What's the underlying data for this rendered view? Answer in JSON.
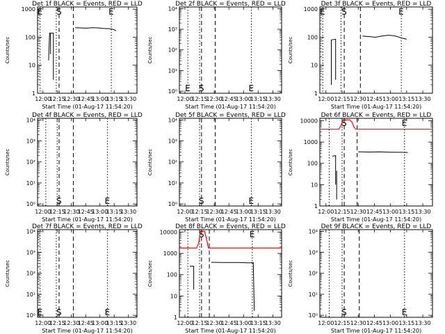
{
  "figure": {
    "xlabel_prefix": "Start Time",
    "xlabel_date": "(01-Aug-17 11:54:20)",
    "ylabel": "Counts/sec"
  },
  "chart_data": [
    {
      "type": "line",
      "title": "Det 1f BLACK = Events, RED = LLD",
      "xlim": [
        "11:54:20",
        "13:39:00"
      ],
      "x_ticks": [
        "12:00",
        "12:15",
        "12:30",
        "12:45",
        "13:00",
        "13:15",
        "13:30"
      ],
      "yscale": "log",
      "ylim": [
        1,
        1200
      ],
      "y_ticks": [
        {
          "v": 1,
          "label": "1"
        },
        {
          "v": 10,
          "label": "10"
        },
        {
          "v": 100,
          "label": "100"
        },
        {
          "v": 1000,
          "label": "1000"
        }
      ],
      "markers": [
        {
          "t": "11:57:00",
          "style": "dotted",
          "label": "E"
        },
        {
          "t": "12:14:00",
          "style": "dotted",
          "label": ""
        },
        {
          "t": "12:17:00",
          "style": "dashed",
          "label": "S"
        },
        {
          "t": "12:32:00",
          "style": "dashed",
          "label": ""
        },
        {
          "t": "13:12:00",
          "style": "dotted",
          "label": "E"
        }
      ],
      "marker_label_pos": "top",
      "series": [
        {
          "name": "Events",
          "color": "#000000",
          "segments": [
            [
              [
                "12:06:00",
                15
              ],
              [
                "12:07:00",
                140
              ],
              [
                "12:11:00",
                140
              ],
              [
                "12:11:00",
                3
              ]
            ],
            [
              [
                "12:08:00",
                140
              ],
              [
                "12:08:00",
                25
              ]
            ],
            [
              [
                "12:34:00",
                220
              ],
              [
                "12:40:00",
                215
              ],
              [
                "12:46:00",
                210
              ],
              [
                "12:52:00",
                220
              ],
              [
                "12:58:00",
                215
              ],
              [
                "13:04:00",
                205
              ],
              [
                "13:10:00",
                200
              ],
              [
                "13:14:00",
                190
              ],
              [
                "13:17:00",
                170
              ]
            ]
          ]
        }
      ]
    },
    {
      "type": "line",
      "title": "Det 2f BLACK = Events, RED = LLD",
      "xlim": [
        "11:54:20",
        "13:39:00"
      ],
      "x_ticks": [
        "12:00",
        "12:15",
        "12:30",
        "12:45",
        "13:00",
        "13:15",
        "13:30"
      ],
      "yscale": "log",
      "ylim": [
        0.8,
        12000
      ],
      "y_ticks": [
        {
          "v": 1,
          "label": "10⁰"
        },
        {
          "v": 10,
          "label": "10¹"
        },
        {
          "v": 100,
          "label": "10²"
        },
        {
          "v": 1000,
          "label": "10³"
        },
        {
          "v": 10000,
          "label": "10⁴"
        }
      ],
      "markers": [
        {
          "t": "12:03:00",
          "style": "dotted",
          "label": "E"
        },
        {
          "t": "12:15:00",
          "style": "dotted",
          "label": ""
        },
        {
          "t": "12:17:00",
          "style": "dashed",
          "label": "S"
        },
        {
          "t": "12:31:00",
          "style": "dashed",
          "label": ""
        },
        {
          "t": "13:08:00",
          "style": "dotted",
          "label": "E"
        }
      ],
      "marker_label_pos": "bottom",
      "series": []
    },
    {
      "type": "line",
      "title": "Det 3f BLACK = Events, RED = LLD",
      "xlim": [
        "11:54:20",
        "13:39:00"
      ],
      "x_ticks": [
        "12:00",
        "12:15",
        "12:30",
        "12:45",
        "13:00",
        "13:15",
        "13:30"
      ],
      "yscale": "log",
      "ylim": [
        1,
        1200
      ],
      "y_ticks": [
        {
          "v": 1,
          "label": "1"
        },
        {
          "v": 10,
          "label": "10"
        },
        {
          "v": 100,
          "label": "100"
        },
        {
          "v": 1000,
          "label": "1000"
        }
      ],
      "markers": [
        {
          "t": "11:57:00",
          "style": "dotted",
          "label": "E"
        },
        {
          "t": "12:14:00",
          "style": "dotted",
          "label": ""
        },
        {
          "t": "12:17:00",
          "style": "dashed",
          "label": "S"
        },
        {
          "t": "12:32:00",
          "style": "dashed",
          "label": ""
        },
        {
          "t": "13:10:00",
          "style": "dotted",
          "label": "E"
        }
      ],
      "marker_label_pos": "top",
      "series": [
        {
          "name": "Events",
          "color": "#000000",
          "segments": [
            [
              [
                "12:05:00",
                2
              ],
              [
                "12:05:00",
                80
              ],
              [
                "12:09:00",
                85
              ],
              [
                "12:09:00",
                3
              ]
            ],
            [
              [
                "12:34:00",
                110
              ],
              [
                "12:40:00",
                105
              ],
              [
                "12:46:00",
                100
              ],
              [
                "12:52:00",
                110
              ],
              [
                "12:58:00",
                118
              ],
              [
                "13:04:00",
                112
              ],
              [
                "13:08:00",
                100
              ],
              [
                "13:12:00",
                90
              ],
              [
                "13:15:00",
                85
              ]
            ]
          ]
        }
      ]
    },
    {
      "type": "line",
      "title": "Det 4f BLACK = Events, RED = LLD",
      "xlim": [
        "11:54:20",
        "13:39:00"
      ],
      "x_ticks": [
        "12:00",
        "12:15",
        "12:30",
        "12:45",
        "13:00",
        "13:15",
        "13:30"
      ],
      "yscale": "log",
      "ylim": [
        0.8,
        12000
      ],
      "y_ticks": [
        {
          "v": 1,
          "label": "10⁰"
        },
        {
          "v": 10,
          "label": "10¹"
        },
        {
          "v": 100,
          "label": "10²"
        },
        {
          "v": 1000,
          "label": "10³"
        },
        {
          "v": 10000,
          "label": "10⁴"
        }
      ],
      "markers": [
        {
          "t": "12:03:00",
          "style": "dotted",
          "label": ""
        },
        {
          "t": "12:15:00",
          "style": "dotted",
          "label": ""
        },
        {
          "t": "12:17:00",
          "style": "dashed",
          "label": "S"
        },
        {
          "t": "12:32:00",
          "style": "dashed",
          "label": ""
        },
        {
          "t": "13:08:00",
          "style": "dotted",
          "label": "E"
        }
      ],
      "marker_label_pos": "bottom",
      "series": []
    },
    {
      "type": "line",
      "title": "Det 5f BLACK = Events, RED = LLD",
      "xlim": [
        "11:54:20",
        "13:39:00"
      ],
      "x_ticks": [
        "12:00",
        "12:15",
        "12:30",
        "12:45",
        "13:00",
        "13:15",
        "13:30"
      ],
      "yscale": "log",
      "ylim": [
        0.8,
        12000
      ],
      "y_ticks": [
        {
          "v": 1,
          "label": "10⁰"
        },
        {
          "v": 10,
          "label": "10¹"
        },
        {
          "v": 100,
          "label": "10²"
        },
        {
          "v": 1000,
          "label": "10³"
        },
        {
          "v": 10000,
          "label": "10⁴"
        }
      ],
      "markers": [
        {
          "t": "12:15:00",
          "style": "dotted",
          "label": ""
        },
        {
          "t": "12:17:00",
          "style": "dashed",
          "label": "S"
        },
        {
          "t": "12:31:00",
          "style": "dashed",
          "label": ""
        },
        {
          "t": "13:08:00",
          "style": "dotted",
          "label": "E"
        }
      ],
      "marker_label_pos": "bottom",
      "series": []
    },
    {
      "type": "line",
      "title": "Det 6f BLACK = Events, RED = LLD",
      "xlim": [
        "11:54:20",
        "13:39:00"
      ],
      "x_ticks": [
        "12:00",
        "12:15",
        "12:30",
        "12:45",
        "13:00",
        "13:15",
        "13:30"
      ],
      "yscale": "log",
      "ylim": [
        1,
        13000
      ],
      "y_ticks": [
        {
          "v": 1,
          "label": "1"
        },
        {
          "v": 10,
          "label": "10"
        },
        {
          "v": 100,
          "label": "100"
        },
        {
          "v": 1000,
          "label": "1000"
        },
        {
          "v": 10000,
          "label": "10000"
        }
      ],
      "markers": [
        {
          "t": "12:03:00",
          "style": "dotted",
          "label": ""
        },
        {
          "t": "12:15:00",
          "style": "dotted",
          "label": ""
        },
        {
          "t": "12:17:00",
          "style": "dashed",
          "label": "S"
        },
        {
          "t": "12:29:00",
          "style": "dashed",
          "label": ""
        },
        {
          "t": "13:13:00",
          "style": "dotted",
          "label": "E"
        }
      ],
      "marker_label_pos": "top",
      "series": [
        {
          "name": "LLD",
          "color": "#ff0000",
          "segments": [
            [
              [
                "11:54:20",
                4000
              ],
              [
                "12:12:00",
                4000
              ],
              [
                "12:14:00",
                6000
              ],
              [
                "12:16:00",
                11000
              ],
              [
                "12:22:00",
                11000
              ],
              [
                "12:24:00",
                9000
              ],
              [
                "12:26:00",
                5000
              ],
              [
                "12:28:00",
                4000
              ],
              [
                "13:39:00",
                4000
              ]
            ]
          ]
        },
        {
          "name": "Events",
          "color": "#000000",
          "segments": [
            [
              [
                "12:06:00",
                220
              ],
              [
                "12:09:00",
                230
              ],
              [
                "12:09:00",
                10
              ]
            ],
            [
              [
                "12:10:00",
                45
              ],
              [
                "12:10:00",
                2
              ]
            ],
            [
              [
                "12:30:00",
                350
              ],
              [
                "12:40:00",
                340
              ],
              [
                "12:50:00",
                345
              ],
              [
                "13:00:00",
                335
              ],
              [
                "13:10:00",
                330
              ],
              [
                "13:16:00",
                325
              ]
            ]
          ]
        }
      ]
    },
    {
      "type": "line",
      "title": "Det 7f BLACK = Events, RED = LLD",
      "xlim": [
        "11:54:20",
        "13:39:00"
      ],
      "x_ticks": [
        "12:00",
        "12:15",
        "12:30",
        "12:45",
        "13:00",
        "13:15",
        "13:30"
      ],
      "yscale": "log",
      "ylim": [
        0.8,
        12000
      ],
      "y_ticks": [
        {
          "v": 1,
          "label": "10⁰"
        },
        {
          "v": 10,
          "label": "10¹"
        },
        {
          "v": 100,
          "label": "10²"
        },
        {
          "v": 1000,
          "label": "10³"
        },
        {
          "v": 10000,
          "label": "10⁴"
        }
      ],
      "markers": [
        {
          "t": "11:57:00",
          "style": "dotted",
          "label": "E"
        },
        {
          "t": "12:14:00",
          "style": "dotted",
          "label": ""
        },
        {
          "t": "12:17:00",
          "style": "dashed",
          "label": "S"
        },
        {
          "t": "12:32:00",
          "style": "dashed",
          "label": ""
        },
        {
          "t": "13:08:00",
          "style": "dotted",
          "label": "E"
        }
      ],
      "marker_label_pos": "bottom",
      "series": []
    },
    {
      "type": "line",
      "title": "Det 8f BLACK = Events, RED = LLD",
      "xlim": [
        "11:54:20",
        "13:39:00"
      ],
      "x_ticks": [
        "12:00",
        "12:15",
        "12:30",
        "12:45",
        "13:00",
        "13:15",
        "13:30"
      ],
      "yscale": "log",
      "ylim": [
        1,
        13000
      ],
      "y_ticks": [
        {
          "v": 1,
          "label": "1"
        },
        {
          "v": 10,
          "label": "10"
        },
        {
          "v": 100,
          "label": "100"
        },
        {
          "v": 1000,
          "label": "1000"
        },
        {
          "v": 10000,
          "label": "10000"
        }
      ],
      "markers": [
        {
          "t": "12:03:00",
          "style": "dotted",
          "label": ""
        },
        {
          "t": "12:15:00",
          "style": "dotted",
          "label": ""
        },
        {
          "t": "12:17:00",
          "style": "dashed",
          "label": "S"
        },
        {
          "t": "12:25:00",
          "style": "dashed",
          "label": ""
        },
        {
          "t": "13:09:00",
          "style": "dotted",
          "label": "E"
        }
      ],
      "marker_label_pos": "top",
      "series": [
        {
          "name": "LLD",
          "color": "#ff0000",
          "segments": [
            [
              [
                "11:54:20",
                1800
              ],
              [
                "12:12:00",
                1800
              ],
              [
                "12:14:00",
                3000
              ],
              [
                "12:16:00",
                11000
              ],
              [
                "12:20:00",
                11000
              ],
              [
                "12:22:00",
                5000
              ],
              [
                "12:24:00",
                1800
              ],
              [
                "13:39:00",
                1800
              ]
            ]
          ]
        },
        {
          "name": "Events",
          "color": "#000000",
          "segments": [
            [
              [
                "12:05:00",
                250
              ],
              [
                "12:09:00",
                250
              ],
              [
                "12:09:00",
                20
              ]
            ],
            [
              [
                "12:27:00",
                380
              ],
              [
                "12:40:00",
                375
              ],
              [
                "12:55:00",
                370
              ],
              [
                "13:05:00",
                360
              ],
              [
                "13:10:00",
                365
              ],
              [
                "13:11:00",
                2
              ]
            ]
          ]
        }
      ]
    },
    {
      "type": "line",
      "title": "Det 9f BLACK = Events, RED = LLD",
      "xlim": [
        "11:54:20",
        "13:39:00"
      ],
      "x_ticks": [
        "12:00",
        "12:15",
        "12:30",
        "12:45",
        "13:00",
        "13:15",
        "13:30"
      ],
      "yscale": "log",
      "ylim": [
        0.8,
        12000
      ],
      "y_ticks": [
        {
          "v": 1,
          "label": "10⁰"
        },
        {
          "v": 10,
          "label": "10¹"
        },
        {
          "v": 100,
          "label": "10²"
        },
        {
          "v": 1000,
          "label": "10³"
        },
        {
          "v": 10000,
          "label": "10⁴"
        }
      ],
      "markers": [
        {
          "t": "12:03:00",
          "style": "dotted",
          "label": ""
        },
        {
          "t": "12:15:00",
          "style": "dotted",
          "label": ""
        },
        {
          "t": "12:17:00",
          "style": "dashed",
          "label": "S"
        },
        {
          "t": "12:31:00",
          "style": "dashed",
          "label": ""
        },
        {
          "t": "13:13:00",
          "style": "dotted",
          "label": "E"
        }
      ],
      "marker_label_pos": "bottom",
      "series": []
    }
  ]
}
